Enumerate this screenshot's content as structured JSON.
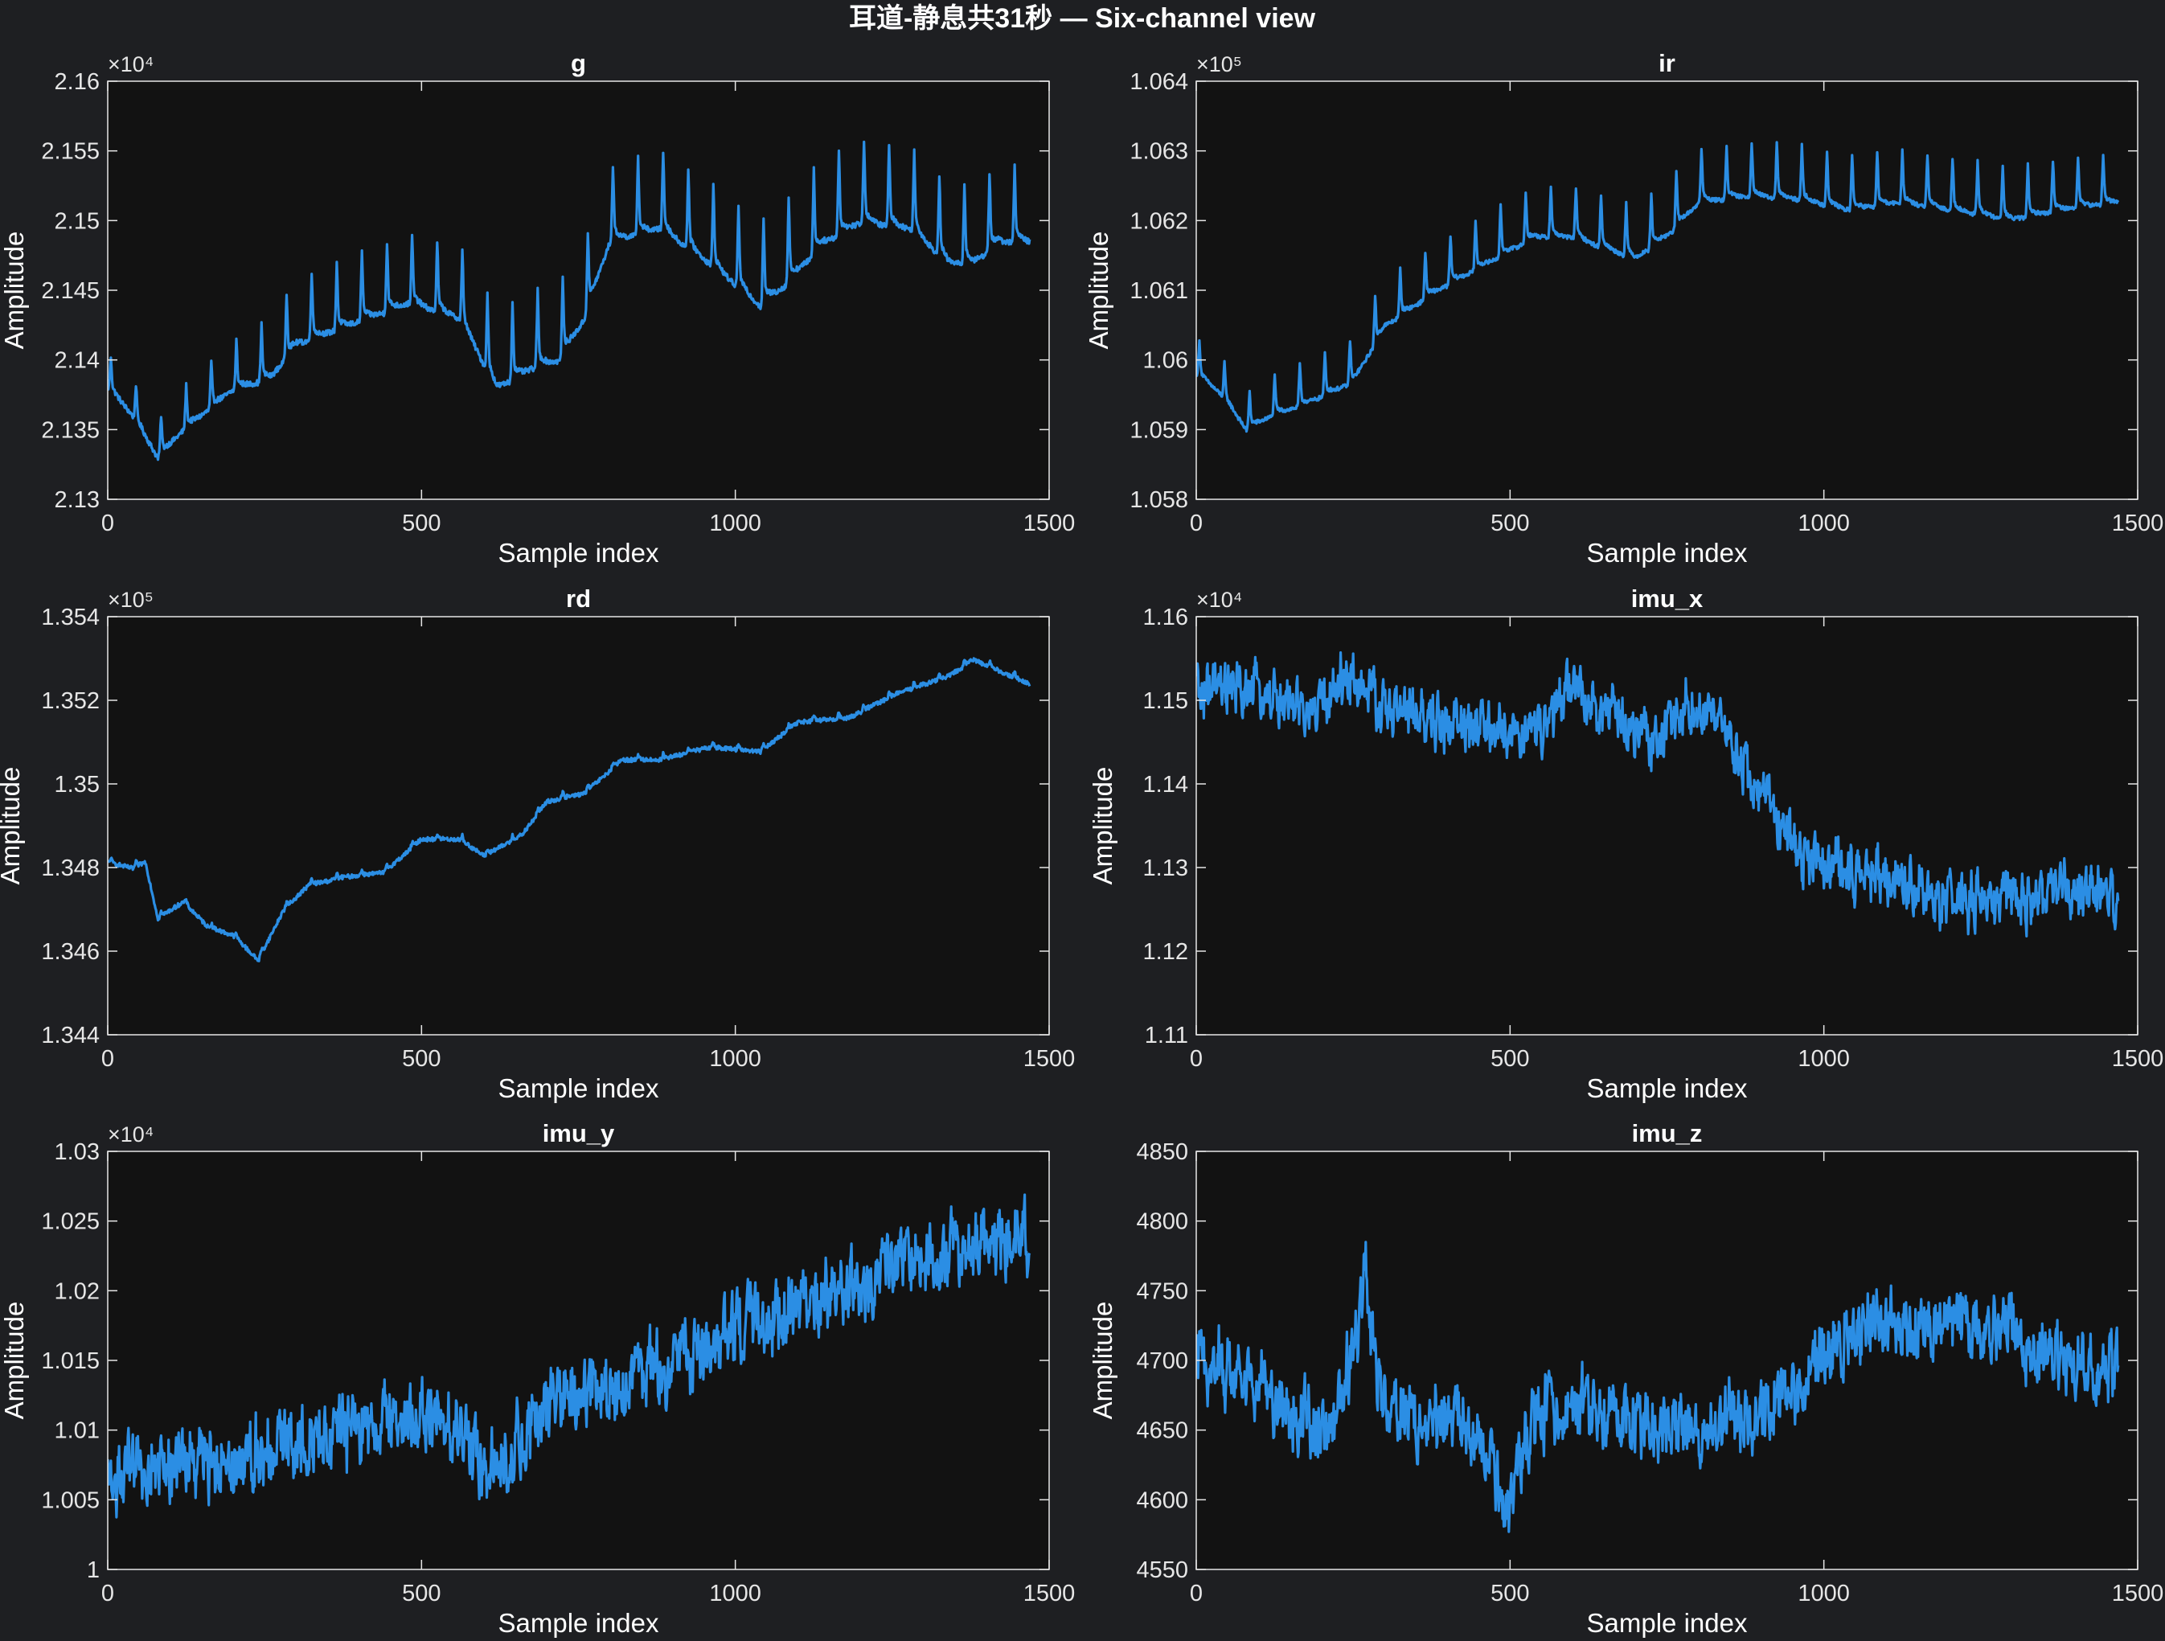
{
  "figure": {
    "title": "耳道-静息共31秒 — Six-channel view",
    "background": "#1e1f22",
    "axes_background": "#121212",
    "line_color": "#2b8ee4",
    "text_color": "#ffffff",
    "tick_color": "#e6e6e6"
  },
  "chart_data": [
    {
      "type": "line",
      "title": "g",
      "xlabel": "Sample index",
      "ylabel": "Amplitude",
      "xlim": [
        0,
        1500
      ],
      "xticks": [
        0,
        500,
        1000,
        1500
      ],
      "ylim": [
        21300,
        21600
      ],
      "yticks": [
        21300,
        21350,
        21400,
        21450,
        21500,
        21550,
        21600
      ],
      "ytick_labels": [
        "2.13",
        "2.135",
        "2.14",
        "2.145",
        "2.15",
        "2.155",
        "2.16"
      ],
      "exponent_label": "×10⁴",
      "series": [
        {
          "n": 1470,
          "baseline": [
            [
              0,
              21385
            ],
            [
              40,
              21365
            ],
            [
              80,
              21335
            ],
            [
              120,
              21355
            ],
            [
              160,
              21370
            ],
            [
              200,
              21385
            ],
            [
              260,
              21395
            ],
            [
              300,
              21420
            ],
            [
              360,
              21430
            ],
            [
              420,
              21440
            ],
            [
              480,
              21450
            ],
            [
              560,
              21440
            ],
            [
              620,
              21390
            ],
            [
              680,
              21405
            ],
            [
              720,
              21410
            ],
            [
              760,
              21440
            ],
            [
              800,
              21495
            ],
            [
              880,
              21505
            ],
            [
              960,
              21480
            ],
            [
              1040,
              21450
            ],
            [
              1080,
              21465
            ],
            [
              1140,
              21495
            ],
            [
              1200,
              21510
            ],
            [
              1280,
              21505
            ],
            [
              1340,
              21480
            ],
            [
              1380,
              21480
            ],
            [
              1420,
              21495
            ],
            [
              1470,
              21495
            ]
          ],
          "pulse_amp": [
            [
              0,
              20
            ],
            [
              200,
              28
            ],
            [
              300,
              40
            ],
            [
              500,
              40
            ],
            [
              600,
              45
            ],
            [
              800,
              45
            ],
            [
              1100,
              50
            ],
            [
              1470,
              45
            ]
          ],
          "pulse_period": 40,
          "noise": 2
        }
      ]
    },
    {
      "type": "line",
      "title": "ir",
      "xlabel": "Sample index",
      "ylabel": "Amplitude",
      "xlim": [
        0,
        1500
      ],
      "xticks": [
        0,
        500,
        1000,
        1500
      ],
      "ylim": [
        105800,
        106400
      ],
      "yticks": [
        105800,
        105900,
        106000,
        106100,
        106200,
        106300,
        106400
      ],
      "ytick_labels": [
        "1.058",
        "1.059",
        "1.06",
        "1.061",
        "1.062",
        "1.063",
        "1.064"
      ],
      "exponent_label": "×10⁵",
      "series": [
        {
          "n": 1470,
          "baseline": [
            [
              0,
              105990
            ],
            [
              40,
              105960
            ],
            [
              80,
              105910
            ],
            [
              120,
              105930
            ],
            [
              180,
              105950
            ],
            [
              250,
              105980
            ],
            [
              300,
              106060
            ],
            [
              380,
              106110
            ],
            [
              460,
              106150
            ],
            [
              540,
              106190
            ],
            [
              600,
              106190
            ],
            [
              700,
              106160
            ],
            [
              760,
              106200
            ],
            [
              800,
              106240
            ],
            [
              880,
              106250
            ],
            [
              960,
              106245
            ],
            [
              1040,
              106230
            ],
            [
              1120,
              106240
            ],
            [
              1200,
              106230
            ],
            [
              1300,
              106215
            ],
            [
              1380,
              106230
            ],
            [
              1470,
              106240
            ]
          ],
          "pulse_amp": [
            [
              0,
              40
            ],
            [
              300,
              55
            ],
            [
              800,
              65
            ],
            [
              1470,
              60
            ]
          ],
          "pulse_period": 40,
          "noise": 3
        }
      ]
    },
    {
      "type": "line",
      "title": "rd",
      "xlabel": "Sample index",
      "ylabel": "Amplitude",
      "xlim": [
        0,
        1500
      ],
      "xticks": [
        0,
        500,
        1000,
        1500
      ],
      "ylim": [
        134400,
        135400
      ],
      "yticks": [
        134400,
        134600,
        134800,
        135000,
        135200,
        135400
      ],
      "ytick_labels": [
        "1.344",
        "1.346",
        "1.348",
        "1.35",
        "1.352",
        "1.354"
      ],
      "exponent_label": "×10⁵",
      "series": [
        {
          "n": 1470,
          "baseline": [
            [
              0,
              134815
            ],
            [
              40,
              134800
            ],
            [
              60,
              134815
            ],
            [
              80,
              134680
            ],
            [
              120,
              134720
            ],
            [
              160,
              134660
            ],
            [
              200,
              134640
            ],
            [
              240,
              134580
            ],
            [
              280,
              134700
            ],
            [
              320,
              134760
            ],
            [
              380,
              134780
            ],
            [
              440,
              134790
            ],
            [
              500,
              134870
            ],
            [
              560,
              134870
            ],
            [
              600,
              134830
            ],
            [
              660,
              134880
            ],
            [
              700,
              134960
            ],
            [
              760,
              134980
            ],
            [
              820,
              135060
            ],
            [
              880,
              135060
            ],
            [
              960,
              135090
            ],
            [
              1040,
              135080
            ],
            [
              1100,
              135150
            ],
            [
              1180,
              135160
            ],
            [
              1260,
              135220
            ],
            [
              1340,
              135260
            ],
            [
              1380,
              135300
            ],
            [
              1440,
              135260
            ],
            [
              1470,
              135240
            ]
          ],
          "pulse_amp": [
            [
              0,
              10
            ],
            [
              1470,
              12
            ]
          ],
          "pulse_period": 40,
          "noise": 5
        }
      ]
    },
    {
      "type": "line",
      "title": "imu_x",
      "xlabel": "Sample index",
      "ylabel": "Amplitude",
      "xlim": [
        0,
        1500
      ],
      "xticks": [
        0,
        500,
        1000,
        1500
      ],
      "ylim": [
        11100,
        11600
      ],
      "yticks": [
        11100,
        11200,
        11300,
        11400,
        11500,
        11600
      ],
      "ytick_labels": [
        "1.11",
        "1.12",
        "1.13",
        "1.14",
        "1.15",
        "1.16"
      ],
      "exponent_label": "×10⁴",
      "series": [
        {
          "n": 1470,
          "baseline": [
            [
              0,
              11510
            ],
            [
              100,
              11510
            ],
            [
              180,
              11480
            ],
            [
              240,
              11530
            ],
            [
              300,
              11490
            ],
            [
              400,
              11470
            ],
            [
              500,
              11460
            ],
            [
              560,
              11470
            ],
            [
              600,
              11520
            ],
            [
              660,
              11480
            ],
            [
              740,
              11450
            ],
            [
              780,
              11500
            ],
            [
              840,
              11460
            ],
            [
              900,
              11390
            ],
            [
              960,
              11320
            ],
            [
              1020,
              11300
            ],
            [
              1100,
              11290
            ],
            [
              1200,
              11260
            ],
            [
              1300,
              11260
            ],
            [
              1360,
              11270
            ],
            [
              1420,
              11270
            ],
            [
              1470,
              11255
            ]
          ],
          "pulse_amp": [
            [
              0,
              0
            ],
            [
              1470,
              0
            ]
          ],
          "pulse_period": 40,
          "noise": 26
        }
      ]
    },
    {
      "type": "line",
      "title": "imu_y",
      "xlabel": "Sample index",
      "ylabel": "Amplitude",
      "xlim": [
        0,
        1500
      ],
      "xticks": [
        0,
        500,
        1000,
        1500
      ],
      "ylim": [
        10000,
        10300
      ],
      "yticks": [
        10000,
        10050,
        10100,
        10150,
        10200,
        10250,
        10300
      ],
      "ytick_labels": [
        "1",
        "1.005",
        "1.01",
        "1.015",
        "1.02",
        "1.025",
        "1.03"
      ],
      "exponent_label": "×10⁴",
      "series": [
        {
          "n": 1470,
          "baseline": [
            [
              0,
              10065
            ],
            [
              100,
              10075
            ],
            [
              200,
              10080
            ],
            [
              300,
              10095
            ],
            [
              400,
              10100
            ],
            [
              500,
              10110
            ],
            [
              560,
              10100
            ],
            [
              620,
              10070
            ],
            [
              700,
              10115
            ],
            [
              800,
              10130
            ],
            [
              900,
              10150
            ],
            [
              1000,
              10170
            ],
            [
              1100,
              10190
            ],
            [
              1200,
              10205
            ],
            [
              1300,
              10220
            ],
            [
              1380,
              10235
            ],
            [
              1470,
              10235
            ]
          ],
          "pulse_amp": [
            [
              0,
              0
            ],
            [
              1470,
              0
            ]
          ],
          "pulse_period": 40,
          "noise": 21
        }
      ]
    },
    {
      "type": "line",
      "title": "imu_z",
      "xlabel": "Sample index",
      "ylabel": "Amplitude",
      "xlim": [
        0,
        1500
      ],
      "xticks": [
        0,
        500,
        1000,
        1500
      ],
      "ylim": [
        4550,
        4850
      ],
      "yticks": [
        4550,
        4600,
        4650,
        4700,
        4750,
        4800,
        4850
      ],
      "ytick_labels": [
        "4550",
        "4600",
        "4650",
        "4700",
        "4750",
        "4800",
        "4850"
      ],
      "exponent_label": "",
      "series": [
        {
          "n": 1470,
          "baseline": [
            [
              0,
              4700
            ],
            [
              80,
              4690
            ],
            [
              160,
              4660
            ],
            [
              220,
              4650
            ],
            [
              255,
              4720
            ],
            [
              270,
              4770
            ],
            [
              290,
              4680
            ],
            [
              360,
              4650
            ],
            [
              420,
              4660
            ],
            [
              470,
              4620
            ],
            [
              500,
              4590
            ],
            [
              540,
              4660
            ],
            [
              600,
              4670
            ],
            [
              700,
              4655
            ],
            [
              800,
              4650
            ],
            [
              880,
              4660
            ],
            [
              960,
              4680
            ],
            [
              1000,
              4710
            ],
            [
              1100,
              4730
            ],
            [
              1150,
              4720
            ],
            [
              1220,
              4730
            ],
            [
              1300,
              4720
            ],
            [
              1380,
              4700
            ],
            [
              1440,
              4690
            ],
            [
              1470,
              4690
            ]
          ],
          "pulse_amp": [
            [
              0,
              0
            ],
            [
              1470,
              0
            ]
          ],
          "pulse_period": 40,
          "noise": 20
        }
      ]
    }
  ]
}
